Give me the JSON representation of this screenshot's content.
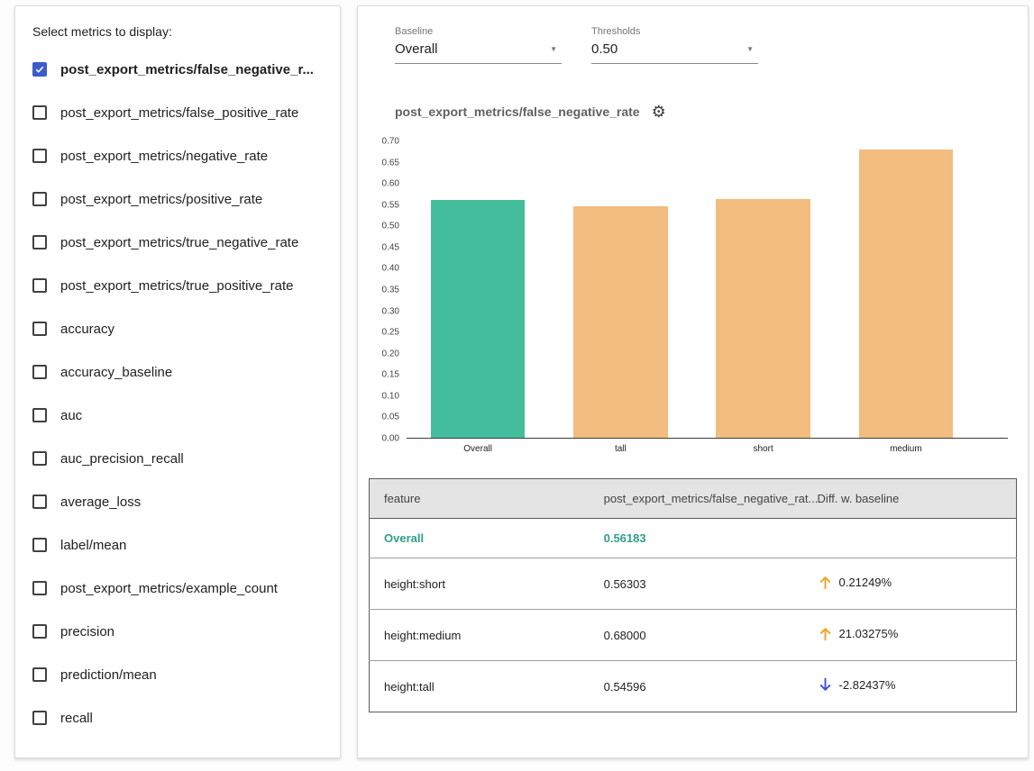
{
  "left_panel": {
    "title": "Select metrics to display:",
    "metrics": [
      {
        "label": "post_export_metrics/false_negative_r...",
        "checked": true
      },
      {
        "label": "post_export_metrics/false_positive_rate",
        "checked": false
      },
      {
        "label": "post_export_metrics/negative_rate",
        "checked": false
      },
      {
        "label": "post_export_metrics/positive_rate",
        "checked": false
      },
      {
        "label": "post_export_metrics/true_negative_rate",
        "checked": false
      },
      {
        "label": "post_export_metrics/true_positive_rate",
        "checked": false
      },
      {
        "label": "accuracy",
        "checked": false
      },
      {
        "label": "accuracy_baseline",
        "checked": false
      },
      {
        "label": "auc",
        "checked": false
      },
      {
        "label": "auc_precision_recall",
        "checked": false
      },
      {
        "label": "average_loss",
        "checked": false
      },
      {
        "label": "label/mean",
        "checked": false
      },
      {
        "label": "post_export_metrics/example_count",
        "checked": false
      },
      {
        "label": "precision",
        "checked": false
      },
      {
        "label": "prediction/mean",
        "checked": false
      },
      {
        "label": "recall",
        "checked": false
      }
    ]
  },
  "controls": {
    "baseline": {
      "label": "Baseline",
      "value": "Overall"
    },
    "thresholds": {
      "label": "Thresholds",
      "value": "0.50"
    }
  },
  "icons": {
    "settings_gear": "⚙",
    "dropdown_arrow": "▼"
  },
  "chart_data": {
    "type": "bar",
    "title": "post_export_metrics/false_negative_rate",
    "categories": [
      "Overall",
      "tall",
      "short",
      "medium"
    ],
    "values": [
      0.56183,
      0.54596,
      0.56303,
      0.68
    ],
    "ylim": [
      0,
      0.7
    ],
    "ytick_step": 0.05,
    "xlabel": "",
    "ylabel": "",
    "grid": false,
    "legend": "none",
    "bar_colors": [
      "#43bd9b",
      "#f2bd7e",
      "#f2bd7e",
      "#f2bd7e"
    ]
  },
  "table": {
    "headers": [
      "feature",
      "post_export_metrics/false_negative_rat...",
      "Diff. w. baseline"
    ],
    "rows": [
      {
        "feature": "Overall",
        "value": "0.56183",
        "diff": "",
        "direction": "",
        "highlight": true
      },
      {
        "feature": "height:short",
        "value": "0.56303",
        "diff": "0.21249%",
        "direction": "up",
        "highlight": false
      },
      {
        "feature": "height:medium",
        "value": "0.68000",
        "diff": "21.03275%",
        "direction": "up",
        "highlight": false
      },
      {
        "feature": "height:tall",
        "value": "0.54596",
        "diff": "-2.82437%",
        "direction": "down",
        "highlight": false
      }
    ]
  },
  "colors": {
    "baseline_bar": "#43bd9b",
    "slice_bar": "#f2bd7e",
    "baseline_text": "#2fa089",
    "checkbox_checked": "#3c5ccc",
    "diff_up": "#f5a31f",
    "diff_down": "#3d51d8"
  }
}
